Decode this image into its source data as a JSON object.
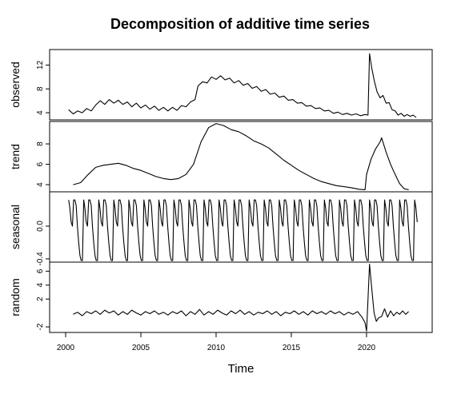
{
  "chart_data": {
    "type": "line",
    "title": "Decomposition of additive time series",
    "xlabel": "Time",
    "x_range": [
      2000,
      2023.3
    ],
    "x_ticks": [
      "2000",
      "2005",
      "2010",
      "2015",
      "2020"
    ],
    "panels": [
      {
        "name": "observed",
        "ylabel": "observed",
        "ylim": [
          2.8,
          14.6
        ],
        "y_ticks": [
          "4",
          "8",
          "12"
        ],
        "points": [
          [
            2000.2,
            4.5
          ],
          [
            2000.5,
            3.8
          ],
          [
            2000.8,
            4.3
          ],
          [
            2001.1,
            4.0
          ],
          [
            2001.4,
            4.7
          ],
          [
            2001.7,
            4.3
          ],
          [
            2002.0,
            5.3
          ],
          [
            2002.3,
            6.0
          ],
          [
            2002.6,
            5.4
          ],
          [
            2002.9,
            6.2
          ],
          [
            2003.2,
            5.6
          ],
          [
            2003.5,
            6.1
          ],
          [
            2003.8,
            5.4
          ],
          [
            2004.1,
            5.8
          ],
          [
            2004.4,
            5.0
          ],
          [
            2004.7,
            5.6
          ],
          [
            2005.0,
            4.8
          ],
          [
            2005.3,
            5.3
          ],
          [
            2005.6,
            4.6
          ],
          [
            2005.9,
            5.1
          ],
          [
            2006.2,
            4.4
          ],
          [
            2006.5,
            4.9
          ],
          [
            2006.8,
            4.3
          ],
          [
            2007.1,
            4.9
          ],
          [
            2007.4,
            4.4
          ],
          [
            2007.7,
            5.2
          ],
          [
            2008.0,
            5.0
          ],
          [
            2008.3,
            5.8
          ],
          [
            2008.6,
            6.2
          ],
          [
            2008.8,
            8.5
          ],
          [
            2009.1,
            9.2
          ],
          [
            2009.4,
            9.0
          ],
          [
            2009.7,
            10.0
          ],
          [
            2010.0,
            9.6
          ],
          [
            2010.3,
            10.2
          ],
          [
            2010.6,
            9.5
          ],
          [
            2010.9,
            9.8
          ],
          [
            2011.2,
            9.0
          ],
          [
            2011.5,
            9.4
          ],
          [
            2011.8,
            8.6
          ],
          [
            2012.1,
            8.9
          ],
          [
            2012.4,
            8.1
          ],
          [
            2012.7,
            8.4
          ],
          [
            2013.0,
            7.6
          ],
          [
            2013.3,
            7.9
          ],
          [
            2013.6,
            7.1
          ],
          [
            2013.9,
            7.3
          ],
          [
            2014.2,
            6.6
          ],
          [
            2014.5,
            6.8
          ],
          [
            2014.8,
            6.1
          ],
          [
            2015.1,
            6.2
          ],
          [
            2015.4,
            5.6
          ],
          [
            2015.7,
            5.7
          ],
          [
            2016.0,
            5.1
          ],
          [
            2016.3,
            5.2
          ],
          [
            2016.6,
            4.7
          ],
          [
            2016.9,
            4.8
          ],
          [
            2017.2,
            4.3
          ],
          [
            2017.5,
            4.4
          ],
          [
            2017.8,
            3.9
          ],
          [
            2018.1,
            4.1
          ],
          [
            2018.4,
            3.7
          ],
          [
            2018.7,
            3.9
          ],
          [
            2019.0,
            3.6
          ],
          [
            2019.3,
            3.8
          ],
          [
            2019.6,
            3.5
          ],
          [
            2019.9,
            3.7
          ],
          [
            2020.1,
            3.6
          ],
          [
            2020.2,
            13.9
          ],
          [
            2020.35,
            11.5
          ],
          [
            2020.5,
            9.5
          ],
          [
            2020.7,
            7.5
          ],
          [
            2020.9,
            6.5
          ],
          [
            2021.1,
            6.9
          ],
          [
            2021.3,
            5.6
          ],
          [
            2021.5,
            5.7
          ],
          [
            2021.7,
            4.5
          ],
          [
            2021.9,
            4.3
          ],
          [
            2022.1,
            3.6
          ],
          [
            2022.3,
            3.9
          ],
          [
            2022.5,
            3.4
          ],
          [
            2022.7,
            3.7
          ],
          [
            2022.9,
            3.4
          ],
          [
            2023.1,
            3.6
          ],
          [
            2023.3,
            3.2
          ]
        ]
      },
      {
        "name": "trend",
        "ylabel": "trend",
        "ylim": [
          3.3,
          10.2
        ],
        "y_ticks": [
          "4",
          "6",
          "8"
        ],
        "points": [
          [
            2000.5,
            4.0
          ],
          [
            2001.0,
            4.2
          ],
          [
            2001.5,
            5.0
          ],
          [
            2002.0,
            5.7
          ],
          [
            2002.5,
            5.9
          ],
          [
            2003.0,
            6.0
          ],
          [
            2003.5,
            6.1
          ],
          [
            2004.0,
            5.9
          ],
          [
            2004.5,
            5.6
          ],
          [
            2005.0,
            5.4
          ],
          [
            2005.5,
            5.1
          ],
          [
            2006.0,
            4.8
          ],
          [
            2006.5,
            4.6
          ],
          [
            2007.0,
            4.5
          ],
          [
            2007.5,
            4.6
          ],
          [
            2008.0,
            5.0
          ],
          [
            2008.5,
            6.0
          ],
          [
            2009.0,
            8.2
          ],
          [
            2009.5,
            9.6
          ],
          [
            2010.0,
            10.0
          ],
          [
            2010.5,
            9.8
          ],
          [
            2011.0,
            9.4
          ],
          [
            2011.5,
            9.2
          ],
          [
            2012.0,
            8.8
          ],
          [
            2012.5,
            8.3
          ],
          [
            2013.0,
            8.0
          ],
          [
            2013.5,
            7.6
          ],
          [
            2014.0,
            7.0
          ],
          [
            2014.5,
            6.4
          ],
          [
            2015.0,
            5.9
          ],
          [
            2015.5,
            5.4
          ],
          [
            2016.0,
            5.0
          ],
          [
            2016.5,
            4.6
          ],
          [
            2017.0,
            4.3
          ],
          [
            2017.5,
            4.1
          ],
          [
            2018.0,
            3.9
          ],
          [
            2018.5,
            3.8
          ],
          [
            2019.0,
            3.7
          ],
          [
            2019.5,
            3.55
          ],
          [
            2019.9,
            3.5
          ],
          [
            2020.0,
            5.0
          ],
          [
            2020.3,
            6.5
          ],
          [
            2020.6,
            7.5
          ],
          [
            2020.9,
            8.2
          ],
          [
            2021.0,
            8.6
          ],
          [
            2021.3,
            7.2
          ],
          [
            2021.6,
            6.0
          ],
          [
            2021.9,
            5.0
          ],
          [
            2022.2,
            4.1
          ],
          [
            2022.5,
            3.6
          ],
          [
            2022.8,
            3.5
          ]
        ]
      },
      {
        "name": "seasonal",
        "ylabel": "seasonal",
        "ylim": [
          -0.44,
          0.42
        ],
        "y_ticks": [
          "-0.4",
          "0.0"
        ],
        "period_start": 2000.2,
        "period_end": 2023.4,
        "cycle": [
          0.32,
          0.22,
          0.05,
          0.0,
          0.32,
          0.32,
          0.25,
          0.0,
          -0.2,
          -0.36,
          -0.42,
          -0.42
        ]
      },
      {
        "name": "random",
        "ylabel": "random",
        "ylim": [
          -2.8,
          7.3
        ],
        "y_ticks": [
          "-2",
          "2",
          "4",
          "6"
        ],
        "points": [
          [
            2000.5,
            -0.2
          ],
          [
            2000.8,
            0.1
          ],
          [
            2001.1,
            -0.4
          ],
          [
            2001.4,
            0.2
          ],
          [
            2001.7,
            -0.1
          ],
          [
            2002.0,
            0.3
          ],
          [
            2002.3,
            -0.2
          ],
          [
            2002.6,
            0.4
          ],
          [
            2002.9,
            0.0
          ],
          [
            2003.2,
            0.3
          ],
          [
            2003.5,
            -0.3
          ],
          [
            2003.8,
            0.2
          ],
          [
            2004.1,
            -0.2
          ],
          [
            2004.4,
            0.4
          ],
          [
            2004.7,
            0.0
          ],
          [
            2005.0,
            -0.3
          ],
          [
            2005.3,
            0.2
          ],
          [
            2005.6,
            -0.1
          ],
          [
            2005.9,
            0.3
          ],
          [
            2006.2,
            -0.2
          ],
          [
            2006.5,
            0.1
          ],
          [
            2006.8,
            -0.3
          ],
          [
            2007.1,
            0.2
          ],
          [
            2007.4,
            -0.1
          ],
          [
            2007.7,
            0.3
          ],
          [
            2008.0,
            -0.4
          ],
          [
            2008.3,
            0.2
          ],
          [
            2008.6,
            -0.2
          ],
          [
            2008.9,
            0.5
          ],
          [
            2009.2,
            -0.3
          ],
          [
            2009.5,
            0.2
          ],
          [
            2009.8,
            -0.2
          ],
          [
            2010.1,
            0.4
          ],
          [
            2010.4,
            0.0
          ],
          [
            2010.7,
            -0.3
          ],
          [
            2011.0,
            0.3
          ],
          [
            2011.3,
            -0.1
          ],
          [
            2011.6,
            0.4
          ],
          [
            2011.9,
            -0.2
          ],
          [
            2012.2,
            0.2
          ],
          [
            2012.5,
            -0.3
          ],
          [
            2012.8,
            0.1
          ],
          [
            2013.1,
            -0.1
          ],
          [
            2013.4,
            0.3
          ],
          [
            2013.7,
            -0.2
          ],
          [
            2014.0,
            0.2
          ],
          [
            2014.3,
            -0.4
          ],
          [
            2014.6,
            0.1
          ],
          [
            2014.9,
            -0.1
          ],
          [
            2015.2,
            0.3
          ],
          [
            2015.5,
            -0.2
          ],
          [
            2015.8,
            0.2
          ],
          [
            2016.1,
            -0.3
          ],
          [
            2016.4,
            0.3
          ],
          [
            2016.7,
            -0.1
          ],
          [
            2017.0,
            0.2
          ],
          [
            2017.3,
            -0.2
          ],
          [
            2017.6,
            0.3
          ],
          [
            2017.9,
            -0.1
          ],
          [
            2018.2,
            0.2
          ],
          [
            2018.5,
            -0.3
          ],
          [
            2018.8,
            0.1
          ],
          [
            2019.1,
            -0.2
          ],
          [
            2019.4,
            0.2
          ],
          [
            2019.7,
            -0.6
          ],
          [
            2019.9,
            -1.4
          ],
          [
            2020.0,
            -2.6
          ],
          [
            2020.1,
            2.0
          ],
          [
            2020.2,
            7.0
          ],
          [
            2020.35,
            3.5
          ],
          [
            2020.5,
            0.0
          ],
          [
            2020.65,
            -1.2
          ],
          [
            2020.8,
            -0.7
          ],
          [
            2021.0,
            -0.5
          ],
          [
            2021.2,
            0.6
          ],
          [
            2021.4,
            -0.6
          ],
          [
            2021.6,
            0.3
          ],
          [
            2021.8,
            -0.4
          ],
          [
            2022.0,
            0.1
          ],
          [
            2022.2,
            -0.2
          ],
          [
            2022.4,
            0.3
          ],
          [
            2022.6,
            -0.2
          ],
          [
            2022.8,
            0.2
          ]
        ]
      }
    ]
  }
}
